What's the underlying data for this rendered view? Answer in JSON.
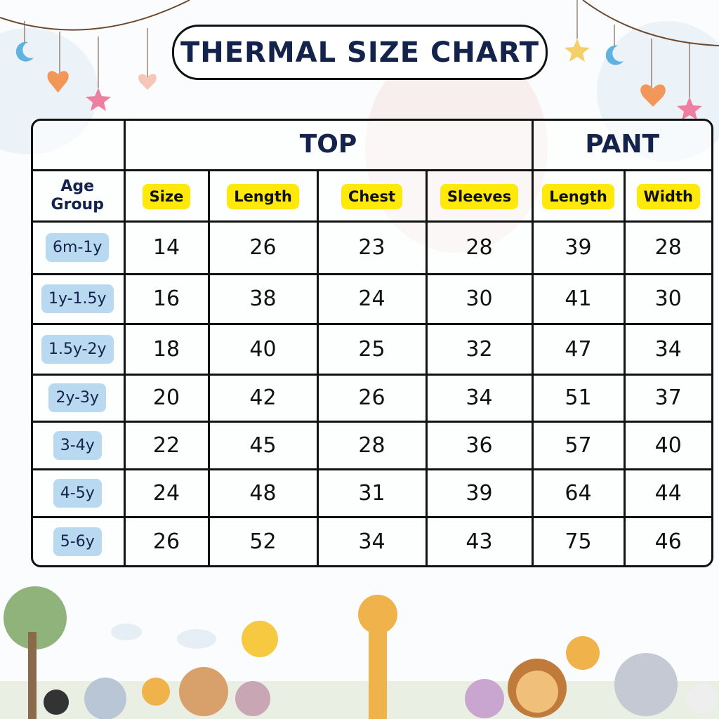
{
  "title": "THERMAL SIZE CHART",
  "groups": {
    "top": "TOP",
    "pant": "PANT"
  },
  "headers": [
    "Age Group",
    "Size",
    "Length",
    "Chest",
    "Sleeves",
    "Length",
    "Width"
  ],
  "age_header_lines": [
    "Age",
    "Group"
  ],
  "rows": [
    [
      "6m-1y",
      "14",
      "26",
      "23",
      "28",
      "39",
      "28"
    ],
    [
      "1y-1.5y",
      "16",
      "38",
      "24",
      "30",
      "41",
      "30"
    ],
    [
      "1.5y-2y",
      "18",
      "40",
      "25",
      "32",
      "47",
      "34"
    ],
    [
      "2y-3y",
      "20",
      "42",
      "26",
      "34",
      "51",
      "37"
    ],
    [
      "3-4y",
      "22",
      "45",
      "28",
      "36",
      "57",
      "40"
    ],
    [
      "4-5y",
      "24",
      "48",
      "31",
      "39",
      "64",
      "44"
    ],
    [
      "5-6y",
      "26",
      "52",
      "34",
      "43",
      "75",
      "46"
    ]
  ],
  "colors": {
    "title": "#14234b",
    "header_pill": "#ffe90a",
    "age_pill": "#b9d9f1"
  }
}
